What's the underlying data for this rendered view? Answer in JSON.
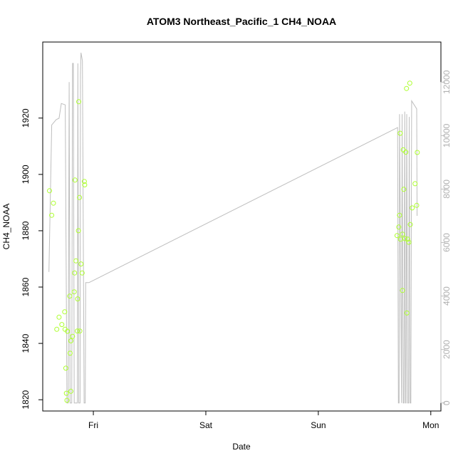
{
  "chart_data": {
    "type": "scatter",
    "title": "ATOM3 Northeast_Pacific_1 CH4_NOAA",
    "xlabel": "Date",
    "ylabel": "CH4_NOAA",
    "x_ticks": [
      "Fri",
      "Sat",
      "Sun",
      "Mon"
    ],
    "x_tick_days": [
      1,
      2,
      3,
      4
    ],
    "xlim_days": [
      0.55,
      4.09
    ],
    "ylim": [
      1816,
      1947
    ],
    "y_ticks": [
      1820,
      1840,
      1860,
      1880,
      1900,
      1920
    ],
    "y2lim": [
      -300,
      13500
    ],
    "y2_ticks": [
      0,
      2000,
      4000,
      6000,
      8000,
      10000,
      12000
    ],
    "grid": false,
    "colors": {
      "points": "#ADFF2F",
      "line": "#BEBEBE",
      "axis": "#000000",
      "axis2": "#BEBEBE"
    },
    "series": [
      {
        "type": "scatter",
        "axis": "left",
        "points": [
          [
            0.61,
            1894.2
          ],
          [
            0.63,
            1885.5
          ],
          [
            0.645,
            1889.8
          ],
          [
            0.675,
            1845.0
          ],
          [
            0.695,
            1849.3
          ],
          [
            0.72,
            1846.7
          ],
          [
            0.745,
            1851.2
          ],
          [
            0.748,
            1845.0
          ],
          [
            0.755,
            1831.2
          ],
          [
            0.76,
            1822.3
          ],
          [
            0.765,
            1819.8
          ],
          [
            0.77,
            1844.3
          ],
          [
            0.79,
            1856.8
          ],
          [
            0.793,
            1836.5
          ],
          [
            0.8,
            1823.0
          ],
          [
            0.8,
            1840.9
          ],
          [
            0.815,
            1842.5
          ],
          [
            0.83,
            1858.3
          ],
          [
            0.833,
            1865.0
          ],
          [
            0.837,
            1898.0
          ],
          [
            0.845,
            1869.3
          ],
          [
            0.857,
            1844.4
          ],
          [
            0.86,
            1855.8
          ],
          [
            0.867,
            1880.0
          ],
          [
            0.87,
            1925.8
          ],
          [
            0.877,
            1891.8
          ],
          [
            0.88,
            1844.4
          ],
          [
            0.89,
            1868.2
          ],
          [
            0.9,
            1865.0
          ],
          [
            0.92,
            1897.5
          ],
          [
            0.923,
            1896.3
          ],
          [
            3.7,
            1878.3
          ],
          [
            3.715,
            1881.3
          ],
          [
            3.722,
            1885.5
          ],
          [
            3.728,
            1914.6
          ],
          [
            3.73,
            1877.0
          ],
          [
            3.748,
            1858.8
          ],
          [
            3.748,
            1878.8
          ],
          [
            3.755,
            1908.7
          ],
          [
            3.76,
            1894.7
          ],
          [
            3.77,
            1877.2
          ],
          [
            3.778,
            1907.9
          ],
          [
            3.784,
            1930.5
          ],
          [
            3.787,
            1850.8
          ],
          [
            3.795,
            1877.0
          ],
          [
            3.805,
            1875.9
          ],
          [
            3.813,
            1932.4
          ],
          [
            3.818,
            1882.2
          ],
          [
            3.835,
            1888.1
          ],
          [
            3.86,
            1896.7
          ],
          [
            3.875,
            1889.0
          ],
          [
            3.88,
            1907.8
          ]
        ]
      },
      {
        "type": "line",
        "axis": "right",
        "points": [
          [
            0.605,
            4900
          ],
          [
            0.63,
            10400
          ],
          [
            0.67,
            10600
          ],
          [
            0.695,
            10650
          ],
          [
            0.715,
            11200
          ],
          [
            0.75,
            11150
          ],
          [
            0.765,
            0
          ],
          [
            0.777,
            0
          ],
          [
            0.785,
            12000
          ],
          [
            0.793,
            0
          ],
          [
            0.808,
            0
          ],
          [
            0.815,
            12700
          ],
          [
            0.822,
            12700
          ],
          [
            0.83,
            0
          ],
          [
            0.858,
            0
          ],
          [
            0.862,
            12700
          ],
          [
            0.87,
            0
          ],
          [
            0.882,
            0
          ],
          [
            0.885,
            12300
          ],
          [
            0.89,
            13100
          ],
          [
            0.903,
            12800
          ],
          [
            0.918,
            0
          ],
          [
            0.928,
            0
          ],
          [
            0.932,
            4500
          ],
          [
            0.96,
            4500
          ],
          [
            3.705,
            10300
          ],
          [
            3.712,
            0
          ],
          [
            3.718,
            0
          ],
          [
            3.722,
            10800
          ],
          [
            3.74,
            0
          ],
          [
            3.745,
            10800
          ],
          [
            3.755,
            0
          ],
          [
            3.762,
            0
          ],
          [
            3.768,
            10900
          ],
          [
            3.775,
            0
          ],
          [
            3.78,
            0
          ],
          [
            3.786,
            10800
          ],
          [
            3.795,
            0
          ],
          [
            3.803,
            0
          ],
          [
            3.808,
            10700
          ],
          [
            3.816,
            0
          ],
          [
            3.823,
            0
          ],
          [
            3.83,
            11300
          ],
          [
            3.875,
            11000
          ],
          [
            3.878,
            7000
          ]
        ]
      }
    ]
  }
}
